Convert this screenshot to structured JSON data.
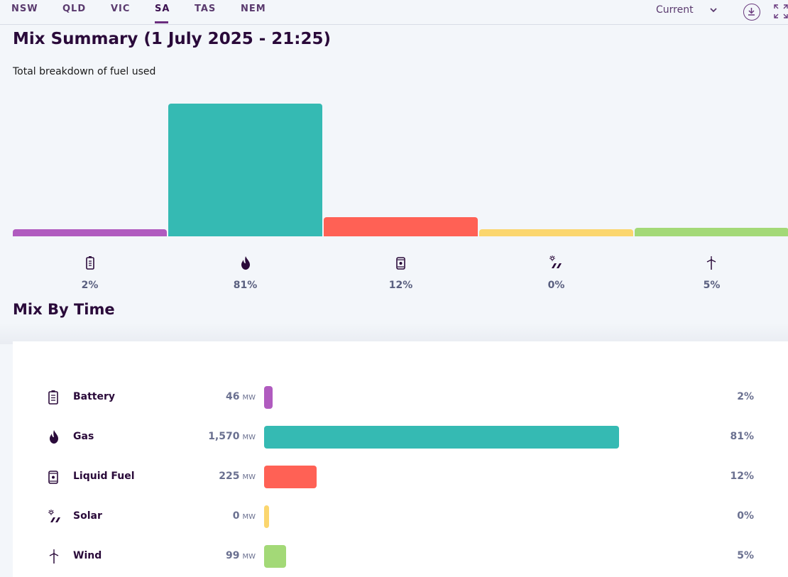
{
  "tabs": [
    "NSW",
    "QLD",
    "VIC",
    "SA",
    "TAS",
    "NEM"
  ],
  "active_tab": "SA",
  "period": {
    "selected": "Current"
  },
  "summary": {
    "title": "Mix Summary (1 July 2025 - 21:25)",
    "subtitle": "Total breakdown of fuel used"
  },
  "mix_by_time": {
    "title": "Mix By Time"
  },
  "colors": {
    "battery": "#b05bbf",
    "gas": "#35bab3",
    "liquid_fuel": "#ff6155",
    "solar": "#fbd66e",
    "wind": "#a3d977"
  },
  "chart_data": {
    "type": "bar",
    "categories": [
      "Battery",
      "Gas",
      "Liquid Fuel",
      "Solar",
      "Wind"
    ],
    "values_mw": [
      46,
      1570,
      225,
      0,
      99
    ],
    "percent": [
      2,
      81,
      12,
      0,
      5
    ],
    "ylim": [
      0,
      1700
    ]
  },
  "rows": [
    {
      "name": "Battery",
      "mw": "46",
      "unit": "MW",
      "pct": "2%",
      "icon": "battery-icon",
      "share": 0.02
    },
    {
      "name": "Gas",
      "mw": "1,570",
      "unit": "MW",
      "pct": "81%",
      "icon": "flame-icon",
      "share": 0.81
    },
    {
      "name": "Liquid Fuel",
      "mw": "225",
      "unit": "MW",
      "pct": "12%",
      "icon": "fuel-can-icon",
      "share": 0.12
    },
    {
      "name": "Solar",
      "mw": "0",
      "unit": "MW",
      "pct": "0%",
      "icon": "solar-icon",
      "share": 0.0
    },
    {
      "name": "Wind",
      "mw": "99",
      "unit": "MW",
      "pct": "5%",
      "icon": "wind-turbine-icon",
      "share": 0.05
    }
  ]
}
